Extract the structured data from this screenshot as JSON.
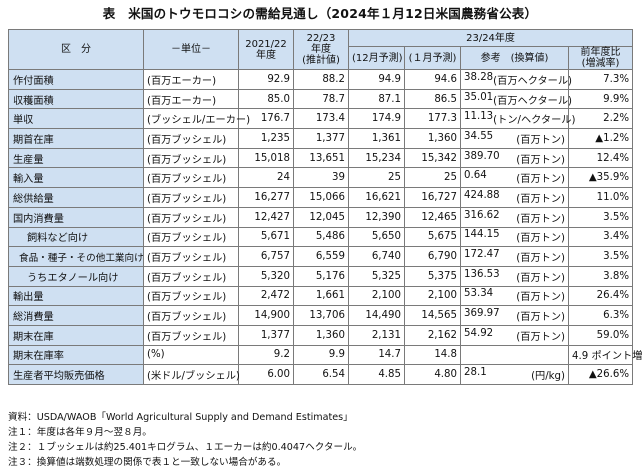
{
  "title": "表　米国のトウモロコシの需給見通し（2024年１月12日米国農務省公表）",
  "header": {
    "category": "区　分",
    "unit": "－単位－",
    "col_2122": "2021/22\n年度",
    "col_2223": "22/23\n年度\n(推計値)",
    "col_2324": "23/24年度",
    "dec_forecast": "(12月予測)",
    "jan_forecast": "(１月予測)",
    "reference": "参考　(換算値)",
    "yoy": "前年度比\n(増減率)"
  },
  "rows": [
    {
      "label": "作付面積",
      "unit": "(百万エーカー)",
      "v2122": "92.9",
      "v2223": "88.2",
      "dec": "94.9",
      "jan": "94.6",
      "ref_val": "38.28",
      "ref_unit": "(百万ヘクタール)",
      "yoy": "7.3%",
      "indent": 0
    },
    {
      "label": "収穫面積",
      "unit": "(百万エーカー)",
      "v2122": "85.0",
      "v2223": "78.7",
      "dec": "87.1",
      "jan": "86.5",
      "ref_val": "35.01",
      "ref_unit": "(百万ヘクタール)",
      "yoy": "9.9%",
      "indent": 0
    },
    {
      "label": "単収",
      "unit": "(ブッシェル/エーカー)",
      "v2122": "176.7",
      "v2223": "173.4",
      "dec": "174.9",
      "jan": "177.3",
      "ref_val": "11.13",
      "ref_unit": "(トン/ヘクタール)",
      "yoy": "2.2%",
      "indent": 0
    },
    {
      "label": "期首在庫",
      "unit": "(百万ブッシェル)",
      "v2122": "1,235",
      "v2223": "1,377",
      "dec": "1,361",
      "jan": "1,360",
      "ref_val": "34.55",
      "ref_unit": "(百万トン)",
      "yoy": "▲1.2%",
      "indent": 0
    },
    {
      "label": "生産量",
      "unit": "(百万ブッシェル)",
      "v2122": "15,018",
      "v2223": "13,651",
      "dec": "15,234",
      "jan": "15,342",
      "ref_val": "389.70",
      "ref_unit": "(百万トン)",
      "yoy": "12.4%",
      "indent": 0
    },
    {
      "label": "輸入量",
      "unit": "(百万ブッシェル)",
      "v2122": "24",
      "v2223": "39",
      "dec": "25",
      "jan": "25",
      "ref_val": "0.64",
      "ref_unit": "(百万トン)",
      "yoy": "▲35.9%",
      "indent": 0
    },
    {
      "label": "総供給量",
      "unit": "(百万ブッシェル)",
      "v2122": "16,277",
      "v2223": "15,066",
      "dec": "16,621",
      "jan": "16,727",
      "ref_val": "424.88",
      "ref_unit": "(百万トン)",
      "yoy": "11.0%",
      "indent": 0
    },
    {
      "label": "国内消費量",
      "unit": "(百万ブッシェル)",
      "v2122": "12,427",
      "v2223": "12,045",
      "dec": "12,390",
      "jan": "12,465",
      "ref_val": "316.62",
      "ref_unit": "(百万トン)",
      "yoy": "3.5%",
      "indent": 0
    },
    {
      "label": "飼料など向け",
      "unit": "(百万ブッシェル)",
      "v2122": "5,671",
      "v2223": "5,486",
      "dec": "5,650",
      "jan": "5,675",
      "ref_val": "144.15",
      "ref_unit": "(百万トン)",
      "yoy": "3.4%",
      "indent": 1
    },
    {
      "label": "食品・種子・その他工業向け",
      "unit": "(百万ブッシェル)",
      "v2122": "6,757",
      "v2223": "6,559",
      "dec": "6,740",
      "jan": "6,790",
      "ref_val": "172.47",
      "ref_unit": "(百万トン)",
      "yoy": "3.5%",
      "indent": 2
    },
    {
      "label": "うちエタノール向け",
      "unit": "(百万ブッシェル)",
      "v2122": "5,320",
      "v2223": "5,176",
      "dec": "5,325",
      "jan": "5,375",
      "ref_val": "136.53",
      "ref_unit": "(百万トン)",
      "yoy": "3.8%",
      "indent": 1
    },
    {
      "label": "輸出量",
      "unit": "(百万ブッシェル)",
      "v2122": "2,472",
      "v2223": "1,661",
      "dec": "2,100",
      "jan": "2,100",
      "ref_val": "53.34",
      "ref_unit": "(百万トン)",
      "yoy": "26.4%",
      "indent": 0
    },
    {
      "label": "総消費量",
      "unit": "(百万ブッシェル)",
      "v2122": "14,900",
      "v2223": "13,706",
      "dec": "14,490",
      "jan": "14,565",
      "ref_val": "369.97",
      "ref_unit": "(百万トン)",
      "yoy": "6.3%",
      "indent": 0
    },
    {
      "label": "期末在庫",
      "unit": "(百万ブッシェル)",
      "v2122": "1,377",
      "v2223": "1,360",
      "dec": "2,131",
      "jan": "2,162",
      "ref_val": "54.92",
      "ref_unit": "(百万トン)",
      "yoy": "59.0%",
      "indent": 0
    },
    {
      "label": "期末在庫率",
      "unit": "(%)",
      "v2122": "9.2",
      "v2223": "9.9",
      "dec": "14.7",
      "jan": "14.8",
      "ref_val": "",
      "ref_unit": "",
      "yoy": "4.9 ポイント増",
      "indent": 0
    },
    {
      "label": "生産者平均販売価格",
      "unit": "(米ドル/ブッシェル)",
      "v2122": "6.00",
      "v2223": "6.54",
      "dec": "4.85",
      "jan": "4.80",
      "ref_val": "28.1",
      "ref_unit": "(円/kg)",
      "yoy": "▲26.6%",
      "indent": 0
    }
  ],
  "notes": [
    "資料：USDA/WAOB「World Agricultural Supply and Demand Estimates」",
    "注１：年度は各年９月～翌８月。",
    "注２：１ブッシェルは約25.401キログラム、１エーカーは約0.4047ヘクタール。",
    "注３：換算値は端数処理の関係で表１と一致しない場合がある。"
  ]
}
